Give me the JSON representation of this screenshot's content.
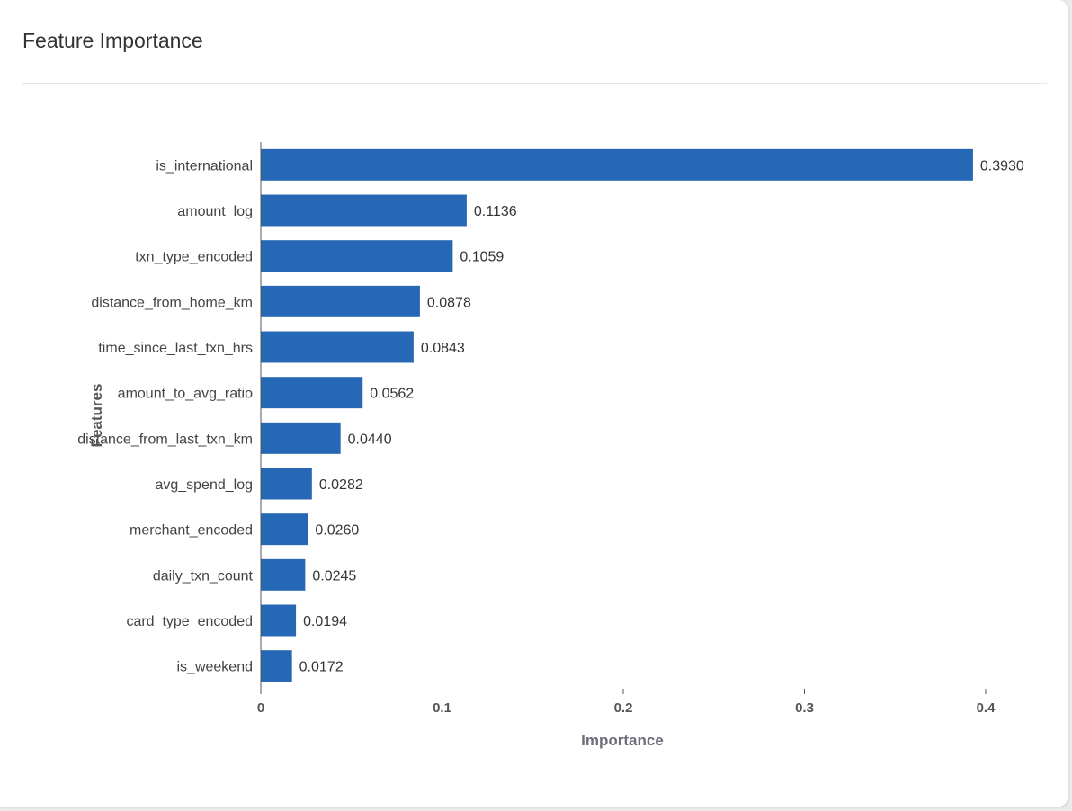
{
  "card": {
    "title": "Feature Importance"
  },
  "chart_data": {
    "type": "bar",
    "orientation": "horizontal",
    "title": "",
    "xlabel": "Importance",
    "ylabel": "Features",
    "xlim": [
      0,
      0.4
    ],
    "xticks": [
      "0",
      "0.1",
      "0.2",
      "0.3",
      "0.4"
    ],
    "grid": false,
    "bar_color": "#2668b5",
    "categories": [
      "is_international",
      "amount_log",
      "txn_type_encoded",
      "distance_from_home_km",
      "time_since_last_txn_hrs",
      "amount_to_avg_ratio",
      "distance_from_last_txn_km",
      "avg_spend_log",
      "merchant_encoded",
      "daily_txn_count",
      "card_type_encoded",
      "is_weekend"
    ],
    "values": [
      0.393,
      0.1136,
      0.1059,
      0.0878,
      0.0843,
      0.0562,
      0.044,
      0.0282,
      0.026,
      0.0245,
      0.0194,
      0.0172
    ],
    "value_labels": [
      "0.3930",
      "0.1136",
      "0.1059",
      "0.0878",
      "0.0843",
      "0.0562",
      "0.0440",
      "0.0282",
      "0.0260",
      "0.0245",
      "0.0194",
      "0.0172"
    ]
  }
}
